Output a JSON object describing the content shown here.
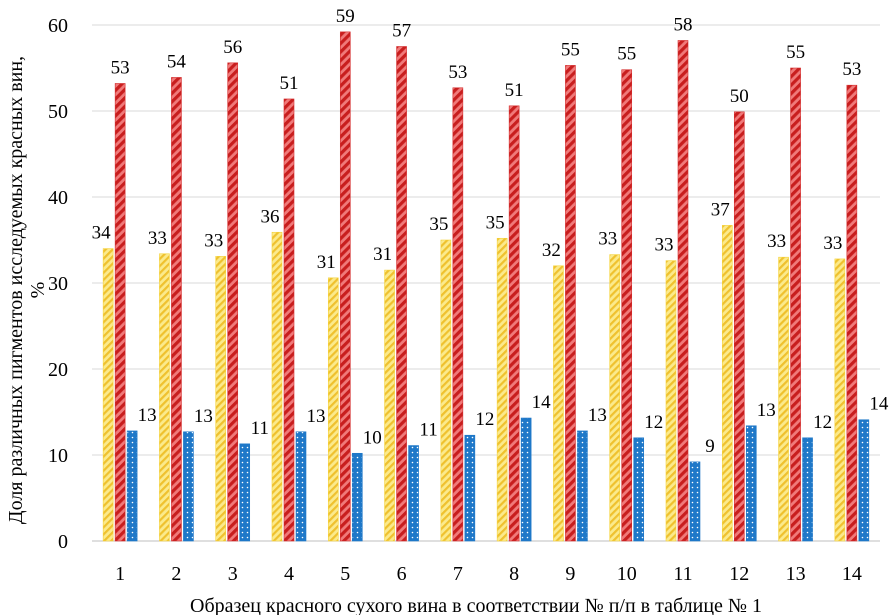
{
  "chart_data": {
    "type": "bar",
    "title": "",
    "xlabel": "Образец красного сухого вина в соответствии № п/п в таблице № 1",
    "ylabel_lines": [
      "Доля различных пигментов  исследуемых красных вин,",
      "%"
    ],
    "ylim": [
      0,
      60
    ],
    "yticks": [
      "0",
      "10",
      "20",
      "30",
      "40",
      "50",
      "60"
    ],
    "grid": "horizontal",
    "legend": "none",
    "categories": [
      "1",
      "2",
      "3",
      "4",
      "5",
      "6",
      "7",
      "8",
      "9",
      "10",
      "11",
      "12",
      "13",
      "14"
    ],
    "series": [
      {
        "color": "#F5D33B",
        "pattern": "diagonal-stripes-light",
        "values": [
          34.0,
          33.4,
          33.1,
          35.9,
          30.6,
          31.5,
          35.0,
          35.2,
          32.0,
          33.3,
          32.6,
          36.7,
          33.0,
          32.8
        ],
        "labels": [
          "34",
          "33",
          "33",
          "36",
          "31",
          "31",
          "35",
          "35",
          "32",
          "33",
          "33",
          "37",
          "33",
          "33"
        ]
      },
      {
        "color": "#D42B2B",
        "pattern": "diagonal-stripes-bold",
        "values": [
          53.2,
          53.9,
          55.6,
          51.4,
          59.2,
          57.5,
          52.7,
          50.6,
          55.3,
          54.8,
          58.2,
          49.9,
          55.0,
          53.0
        ],
        "labels": [
          "53",
          "54",
          "56",
          "51",
          "59",
          "57",
          "53",
          "51",
          "55",
          "55",
          "58",
          "50",
          "55",
          "53"
        ]
      },
      {
        "color": "#1F78C8",
        "pattern": "dotted",
        "values": [
          12.8,
          12.7,
          11.3,
          12.7,
          10.2,
          11.1,
          12.3,
          14.3,
          12.8,
          12.0,
          9.2,
          13.4,
          12.0,
          14.1
        ],
        "labels": [
          "13",
          "13",
          "11",
          "13",
          "10",
          "11",
          "12",
          "14",
          "13",
          "12",
          "9",
          "13",
          "12",
          "14"
        ]
      }
    ]
  }
}
